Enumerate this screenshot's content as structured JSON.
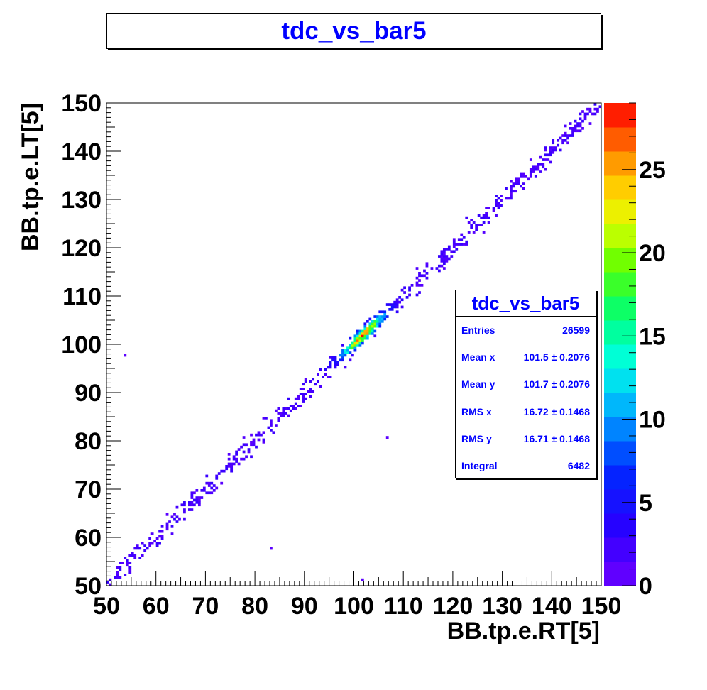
{
  "chart_data": {
    "type": "heatmap",
    "title": "tdc_vs_bar5",
    "xlabel": "BB.tp.e.RT[5]",
    "ylabel": "BB.tp.e.LT[5]",
    "xlim": [
      50,
      150
    ],
    "ylim": [
      50,
      150
    ],
    "x_ticks": [
      "50",
      "60",
      "70",
      "80",
      "90",
      "100",
      "110",
      "120",
      "130",
      "140",
      "150"
    ],
    "y_ticks": [
      "50",
      "60",
      "70",
      "80",
      "90",
      "100",
      "110",
      "120",
      "130",
      "140",
      "150"
    ],
    "colorbar": {
      "range": [
        0,
        29
      ],
      "ticks": [
        "0",
        "5",
        "10",
        "15",
        "20",
        "25"
      ]
    },
    "band": {
      "from": [
        50,
        50
      ],
      "to": [
        150,
        150
      ],
      "peak_center": [
        101.5,
        101.7
      ],
      "peak_count": 28
    },
    "stats": {
      "title": "tdc_vs_bar5",
      "rows": [
        {
          "label": "Entries",
          "value": "26599"
        },
        {
          "label": "Mean x",
          "value": "101.5 ± 0.2076"
        },
        {
          "label": "Mean y",
          "value": "101.7 ± 0.2076"
        },
        {
          "label": "RMS x",
          "value": "16.72 ± 0.1468"
        },
        {
          "label": "RMS y",
          "value": "16.71 ± 0.1468"
        },
        {
          "label": "Integral",
          "value": "6482"
        }
      ]
    }
  }
}
